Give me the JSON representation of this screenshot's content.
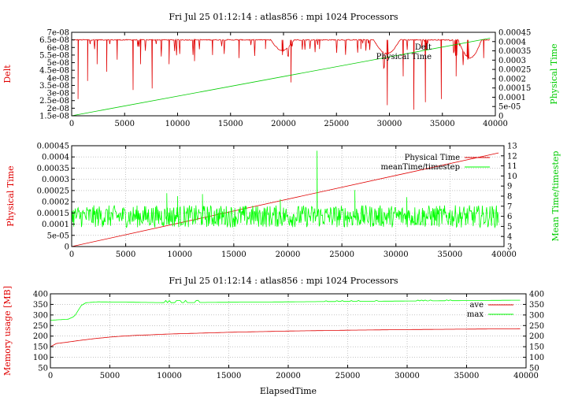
{
  "figure": {
    "title_top": "Fri Jul 25 01:12:14 : atlas856 : mpi 1024 Processors",
    "title_bottom": "Fri Jul 25 01:12:14 : atlas856 : mpi 1024 Processors",
    "xlabel_bottom": "ElapsedTime"
  },
  "colors": {
    "red": "#e00000",
    "green": "#00cc00",
    "bright_green": "#00ff00",
    "axis": "#000000",
    "grid": "#a0a0a0"
  },
  "chart_data": [
    {
      "type": "line",
      "title": "Fri Jul 25 01:12:14 : atlas856 : mpi 1024 Processors",
      "xlabel": "",
      "ylabel": "Delt",
      "y2label": "Physical Time",
      "xlim": [
        0,
        40000
      ],
      "ylim": [
        1.5e-08,
        7e-08
      ],
      "y2lim": [
        0,
        0.00045
      ],
      "xticks": [
        "0",
        "5000",
        "10000",
        "15000",
        "20000",
        "25000",
        "30000",
        "35000",
        "40000"
      ],
      "yticks": [
        "1.5e-08",
        "2e-08",
        "2.5e-08",
        "3e-08",
        "3.5e-08",
        "4e-08",
        "4.5e-08",
        "5e-08",
        "5.5e-08",
        "6e-08",
        "6.5e-08",
        "7e-08"
      ],
      "y2ticks": [
        "0",
        "5e-05",
        "0.0001",
        "0.00015",
        "0.0002",
        "0.00025",
        "0.0003",
        "0.00035",
        "0.0004",
        "0.00045"
      ],
      "grid": false,
      "legend_position": "top-right",
      "series": [
        {
          "name": "Delt",
          "axis": "left",
          "color": "#e00000",
          "baseline": 6.5e-08,
          "x_range": [
            0,
            39500
          ],
          "dips": [
            [
              600,
              2.6e-08
            ],
            [
              1500,
              3.8e-08
            ],
            [
              2400,
              4.9e-08
            ],
            [
              3300,
              4.4e-08
            ],
            [
              4300,
              5.2e-08
            ],
            [
              5800,
              3.2e-08
            ],
            [
              6500,
              4.9e-08
            ],
            [
              7600,
              3.3e-08
            ],
            [
              9200,
              4.9e-08
            ],
            [
              11600,
              5.1e-08
            ],
            [
              13300,
              5.5e-08
            ],
            [
              15800,
              5.3e-08
            ],
            [
              18300,
              5.9e-08
            ],
            [
              19900,
              5.5e-08
            ],
            [
              20700,
              3.7e-08
            ],
            [
              23400,
              5.9e-08
            ],
            [
              27300,
              5.9e-08
            ],
            [
              29800,
              2.2e-08
            ],
            [
              31300,
              4.1e-08
            ],
            [
              32300,
              1.9e-08
            ],
            [
              33400,
              2.4e-08
            ],
            [
              34900,
              2.6e-08
            ],
            [
              36300,
              4.1e-08
            ],
            [
              37400,
              5.2e-08
            ],
            [
              38900,
              5.3e-08
            ]
          ]
        },
        {
          "name": "Physical Time",
          "axis": "right",
          "color": "#00cc00",
          "x": [
            0,
            39500
          ],
          "y": [
            0,
            0.000418
          ]
        }
      ]
    },
    {
      "type": "line",
      "title": "",
      "xlabel": "",
      "ylabel": "Physical Time",
      "y2label": "Mean Time/timestep",
      "xlim": [
        0,
        40000
      ],
      "ylim": [
        0,
        0.00045
      ],
      "y2lim": [
        3,
        13
      ],
      "xticks": [
        "0",
        "5000",
        "10000",
        "15000",
        "20000",
        "25000",
        "30000",
        "35000",
        "40000"
      ],
      "yticks": [
        "0",
        "5e-05",
        "0.0001",
        "0.00015",
        "0.0002",
        "0.00025",
        "0.0003",
        "0.00035",
        "0.0004",
        "0.00045"
      ],
      "y2ticks": [
        "3",
        "4",
        "5",
        "6",
        "7",
        "8",
        "9",
        "10",
        "11",
        "12",
        "13"
      ],
      "grid": true,
      "legend_position": "top-right",
      "series": [
        {
          "name": "Physical Time",
          "axis": "left",
          "color": "#e00000",
          "x": [
            0,
            39500
          ],
          "y": [
            0,
            0.000418
          ]
        },
        {
          "name": "meanTime/timestep",
          "axis": "right",
          "color": "#00ff00",
          "mean": 6.0,
          "noise": 1.1,
          "x_range": [
            0,
            39500
          ],
          "spikes": [
            [
              22700,
              12.5
            ],
            [
              26200,
              8.6
            ],
            [
              8800,
              8.3
            ],
            [
              12100,
              8.2
            ],
            [
              9800,
              8.0
            ],
            [
              31000,
              7.9
            ],
            [
              19300,
              7.7
            ]
          ]
        }
      ]
    },
    {
      "type": "line",
      "title": "Fri Jul 25 01:12:14 : atlas856 : mpi 1024 Processors",
      "xlabel": "ElapsedTime",
      "ylabel": "Memory usage [MB]",
      "y2label": "",
      "xlim": [
        0,
        40000
      ],
      "ylim": [
        50,
        400
      ],
      "y2lim": [
        50,
        400
      ],
      "xticks": [
        "0",
        "5000",
        "10000",
        "15000",
        "20000",
        "25000",
        "30000",
        "35000",
        "40000"
      ],
      "yticks": [
        "50",
        "100",
        "150",
        "200",
        "250",
        "300",
        "350",
        "400"
      ],
      "y2ticks": [
        "50",
        "100",
        "150",
        "200",
        "250",
        "300",
        "350",
        "400"
      ],
      "grid": true,
      "legend_position": "top-right",
      "series": [
        {
          "name": "ave",
          "color": "#e00000",
          "x": [
            0,
            500,
            1500,
            2500,
            4000,
            5500,
            7000,
            10000,
            15000,
            20000,
            25000,
            30000,
            35000,
            39500
          ],
          "y": [
            150,
            165,
            172,
            180,
            190,
            198,
            203,
            210,
            218,
            224,
            228,
            231,
            233,
            235
          ]
        },
        {
          "name": "max",
          "color": "#00ff00",
          "x": [
            0,
            1500,
            1900,
            2100,
            2600,
            3000,
            4000,
            10000,
            15000,
            20000,
            25000,
            30000,
            35000,
            39500
          ],
          "y": [
            275,
            280,
            290,
            300,
            345,
            358,
            362,
            358,
            360,
            362,
            364,
            366,
            368,
            370
          ]
        }
      ]
    }
  ]
}
